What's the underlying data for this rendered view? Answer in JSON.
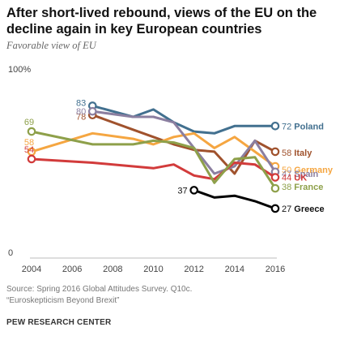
{
  "title": "After short-lived rebound, views of the EU on the decline again in key European countries",
  "subtitle": "Favorable view of EU",
  "notes": {
    "source": "Source: Spring 2016 Global Attitudes Survey. Q10c.",
    "report": "“Euroskepticism Beyond Brexit”"
  },
  "footer": "PEW RESEARCH CENTER",
  "chart_data": {
    "type": "line",
    "xlim": [
      2004,
      2016
    ],
    "ylim": [
      0,
      100
    ],
    "x_ticks": [
      "2004",
      "2006",
      "2008",
      "2010",
      "2012",
      "2014",
      "2016"
    ],
    "y_ticks": [
      {
        "value": 0,
        "label": "0"
      },
      {
        "value": 100,
        "label": "100%"
      }
    ],
    "grid": false,
    "legend": "direct labels at line ends",
    "series": [
      {
        "name": "Poland",
        "color": "#42708f",
        "start_label": "83",
        "end_label": "72",
        "x": [
          2007,
          2009,
          2010,
          2011,
          2012,
          2013,
          2014,
          2015,
          2016
        ],
        "y": [
          83,
          77,
          81,
          74,
          69,
          68,
          72,
          72,
          72
        ]
      },
      {
        "name": "Italy",
        "color": "#a0522d",
        "start_label": "78",
        "end_label": "58",
        "x": [
          2007,
          2009,
          2010,
          2011,
          2012,
          2013,
          2014,
          2015,
          2016
        ],
        "y": [
          78,
          70,
          66,
          62,
          59,
          58,
          46,
          64,
          58
        ]
      },
      {
        "name": "Germany",
        "color": "#f5a641",
        "start_label": "58",
        "end_label": "50",
        "x": [
          2004,
          2007,
          2009,
          2010,
          2011,
          2012,
          2013,
          2014,
          2015,
          2016
        ],
        "y": [
          58,
          68,
          65,
          62,
          66,
          68,
          60,
          66,
          58,
          50
        ]
      },
      {
        "name": "Spain",
        "color": "#8b7fa0",
        "start_label": "80",
        "end_label": "47",
        "x": [
          2007,
          2009,
          2010,
          2011,
          2012,
          2013,
          2014,
          2015,
          2016
        ],
        "y": [
          80,
          77,
          77,
          74,
          60,
          46,
          50,
          64,
          47
        ]
      },
      {
        "name": "UK",
        "color": "#d23b3b",
        "start_label": "54",
        "end_label": "44",
        "x": [
          2004,
          2007,
          2009,
          2010,
          2011,
          2012,
          2013,
          2014,
          2015,
          2016
        ],
        "y": [
          54,
          52,
          50,
          49,
          51,
          45,
          43,
          52,
          51,
          44
        ]
      },
      {
        "name": "France",
        "color": "#8ea04a",
        "start_label": "69",
        "end_label": "38",
        "x": [
          2004,
          2007,
          2009,
          2010,
          2011,
          2012,
          2013,
          2014,
          2015,
          2016
        ],
        "y": [
          69,
          62,
          62,
          64,
          63,
          60,
          41,
          54,
          55,
          38
        ]
      },
      {
        "name": "Greece",
        "color": "#000000",
        "start_label": "37",
        "end_label": "27",
        "x": [
          2012,
          2013,
          2014,
          2015,
          2016
        ],
        "y": [
          37,
          33,
          34,
          31,
          27
        ]
      }
    ]
  }
}
